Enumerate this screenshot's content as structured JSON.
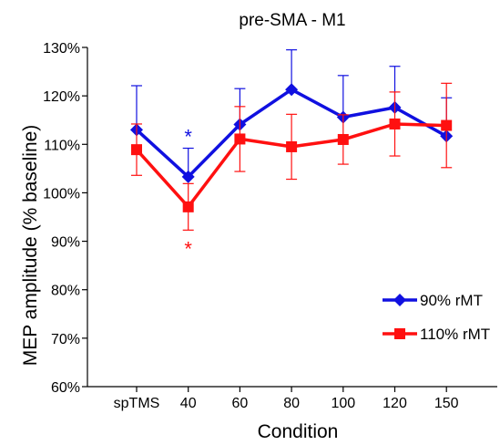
{
  "chart_data": {
    "type": "line",
    "title": "pre-SMA - M1",
    "xlabel": "Condition",
    "ylabel": "MEP amplitude (% baseline)",
    "categories": [
      "spTMS",
      "40",
      "60",
      "80",
      "100",
      "120",
      "150"
    ],
    "yticks": [
      "60%",
      "70%",
      "80%",
      "90%",
      "100%",
      "110%",
      "120%",
      "130%"
    ],
    "ylim": [
      60,
      130
    ],
    "grid": false,
    "legend_position": "bottom-right",
    "series": [
      {
        "name": "90% rMT",
        "color": "#1010e0",
        "marker": "diamond",
        "error_direction": "up",
        "values": [
          113.0,
          103.3,
          114.1,
          121.3,
          115.6,
          117.6,
          111.7
        ],
        "errors": [
          9.1,
          5.9,
          7.4,
          8.2,
          8.6,
          8.5,
          7.9
        ]
      },
      {
        "name": "110% rMT",
        "color": "#ff1010",
        "marker": "square",
        "error_direction": "both",
        "values": [
          108.9,
          97.1,
          111.1,
          109.5,
          111.0,
          114.2,
          113.9
        ],
        "errors": [
          5.3,
          4.8,
          6.7,
          6.7,
          5.1,
          6.6,
          8.7
        ]
      }
    ],
    "annotations": [
      {
        "text": "*",
        "category": "40",
        "series": "90% rMT",
        "color": "#1010e0",
        "placement": "above"
      },
      {
        "text": "*",
        "category": "40",
        "series": "110% rMT",
        "color": "#ff1010",
        "placement": "below"
      }
    ]
  }
}
